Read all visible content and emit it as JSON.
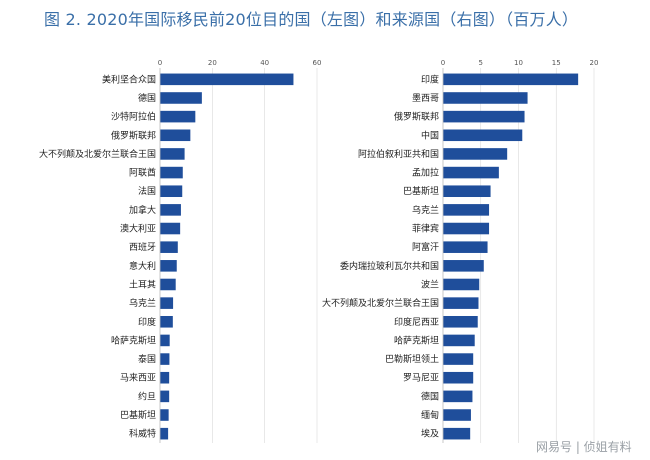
{
  "figure": {
    "title": "图 2. 2020年国际移民前20位目的国（左图）和来源国（右图）（百万人）"
  },
  "watermark": "网易号 | 侦姐有料",
  "chart_data": [
    {
      "type": "bar",
      "orientation": "horizontal",
      "title": "目的国（左图）",
      "unit": "百万人",
      "xlim": [
        0,
        60
      ],
      "ticks": [
        0,
        20,
        40,
        60
      ],
      "grid": true,
      "bar_color": "#1f4e9b",
      "categories": [
        "美利坚合众国",
        "德国",
        "沙特阿拉伯",
        "俄罗斯联邦",
        "大不列颠及北爱尔兰联合王国",
        "阿联酋",
        "法国",
        "加拿大",
        "澳大利亚",
        "西班牙",
        "意大利",
        "土耳其",
        "乌克兰",
        "印度",
        "哈萨克斯坦",
        "泰国",
        "马来西亚",
        "约旦",
        "巴基斯坦",
        "科威特"
      ],
      "values": [
        51,
        16,
        13.5,
        11.6,
        9.4,
        8.7,
        8.5,
        8.0,
        7.7,
        6.8,
        6.4,
        6.0,
        5.0,
        4.9,
        3.7,
        3.6,
        3.5,
        3.5,
        3.3,
        3.1
      ]
    },
    {
      "type": "bar",
      "orientation": "horizontal",
      "title": "来源国（右图）",
      "unit": "百万人",
      "xlim": [
        0,
        20
      ],
      "ticks": [
        0,
        5,
        10,
        15,
        20
      ],
      "grid": true,
      "bar_color": "#1f4e9b",
      "categories": [
        "印度",
        "墨西哥",
        "俄罗斯联邦",
        "中国",
        "阿拉伯叙利亚共和国",
        "孟加拉",
        "巴基斯坦",
        "乌克兰",
        "菲律宾",
        "阿富汗",
        "委内瑞拉玻利瓦尔共和国",
        "波兰",
        "大不列颠及北爱尔兰联合王国",
        "印度尼西亚",
        "哈萨克斯坦",
        "巴勒斯坦领土",
        "罗马尼亚",
        "德国",
        "缅甸",
        "埃及"
      ],
      "values": [
        17.9,
        11.2,
        10.8,
        10.5,
        8.5,
        7.4,
        6.3,
        6.1,
        6.1,
        5.9,
        5.4,
        4.8,
        4.7,
        4.6,
        4.2,
        4.0,
        4.0,
        3.9,
        3.7,
        3.6
      ]
    }
  ]
}
